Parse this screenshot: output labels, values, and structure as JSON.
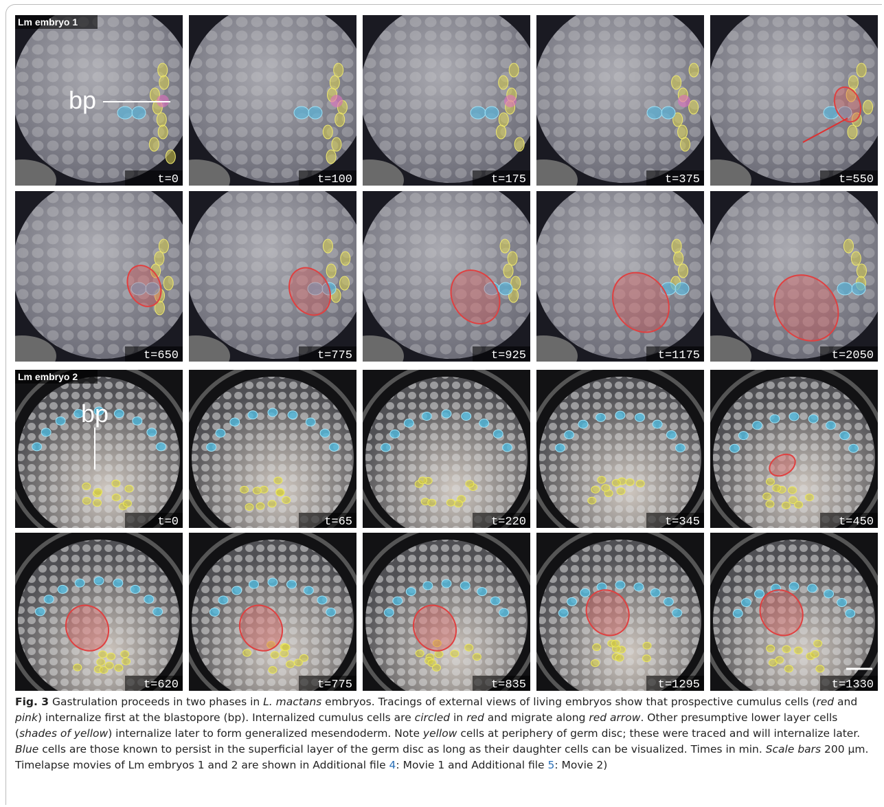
{
  "figure": {
    "panel_groups": [
      {
        "label": "Lm embryo 1",
        "bp": "bp",
        "rows": [
          [
            "t=0",
            "t=100",
            "t=175",
            "t=375",
            "t=550"
          ],
          [
            "t=650",
            "t=775",
            "t=925",
            "t=1175",
            "t=2050"
          ]
        ]
      },
      {
        "label": "Lm embryo 2",
        "bp": "bp",
        "rows": [
          [
            "t=0",
            "t=65",
            "t=220",
            "t=345",
            "t=450"
          ],
          [
            "t=620",
            "t=775",
            "t=835",
            "t=1295",
            "t=1330"
          ]
        ]
      }
    ]
  },
  "caption": {
    "label": "Fig. 3",
    "parts": [
      "  Gastrulation proceeds in two phases in ",
      "L. mactans",
      " embryos. Tracings of external views of living embryos show that prospective cumulus cells (",
      "red",
      " and ",
      "pink",
      ") internalize first at the blastopore (bp). Internalized cumulus cells are ",
      "circled",
      " in ",
      "red",
      " and migrate along ",
      "red arrow",
      ". Other presumptive lower layer cells (",
      "shades of yellow",
      ") internalize later to form generalized mesendoderm. Note ",
      "yellow",
      " cells at periphery of germ disc; these were traced and will internalize later. ",
      "Blue",
      " cells are those known to persist in the superficial layer of the germ disc as long as their daughter cells can be visualized. Times in min. ",
      "Scale bars",
      " 200 µm. Timelapse movies of Lm embryos 1 and 2 are shown in Additional file ",
      "4",
      ": Movie 1 and Additional file ",
      "5",
      ": Movie 2)"
    ]
  }
}
